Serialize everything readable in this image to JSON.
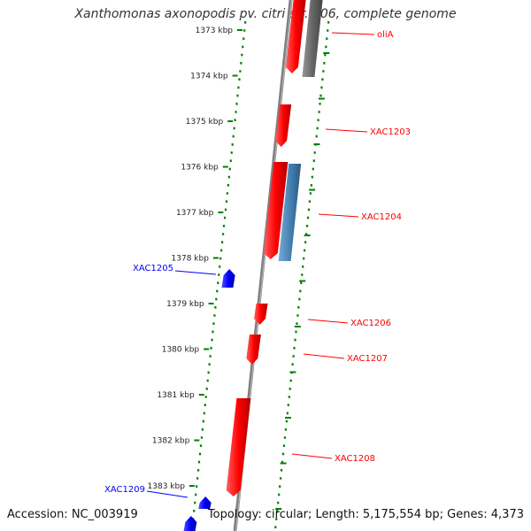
{
  "title": "Xanthomonas axonopodis pv. citri str. 306, complete genome",
  "footer": {
    "accession": "Accession: NC_003919",
    "summary": "Topology: circular; Length: 5,175,554 bp; Genes: 4,373"
  },
  "colors": {
    "forward_gene": "#ff0000",
    "reverse_gene": "#0000ff",
    "rna_gene": "#666666",
    "cds_feature": "#4682b4",
    "backbone": "#808080",
    "scale_dots": "#008000"
  },
  "diagram_data": {
    "type": "linear-genome-map",
    "range_kbp": [
      1373,
      1383
    ],
    "ticks": [
      "1373 kbp",
      "1374 kbp",
      "1375 kbp",
      "1376 kbp",
      "1377 kbp",
      "1378 kbp",
      "1379 kbp",
      "1380 kbp",
      "1381 kbp",
      "1382 kbp",
      "1383 kbp"
    ],
    "labels": [
      {
        "text": "oliA",
        "strand": "forward"
      },
      {
        "text": "XAC1203",
        "strand": "forward"
      },
      {
        "text": "XAC1204",
        "strand": "forward"
      },
      {
        "text": "XAC1205",
        "strand": "reverse"
      },
      {
        "text": "XAC1206",
        "strand": "forward"
      },
      {
        "text": "XAC1207",
        "strand": "forward"
      },
      {
        "text": "XAC1208",
        "strand": "forward"
      },
      {
        "text": "XAC1209",
        "strand": "reverse"
      }
    ]
  }
}
